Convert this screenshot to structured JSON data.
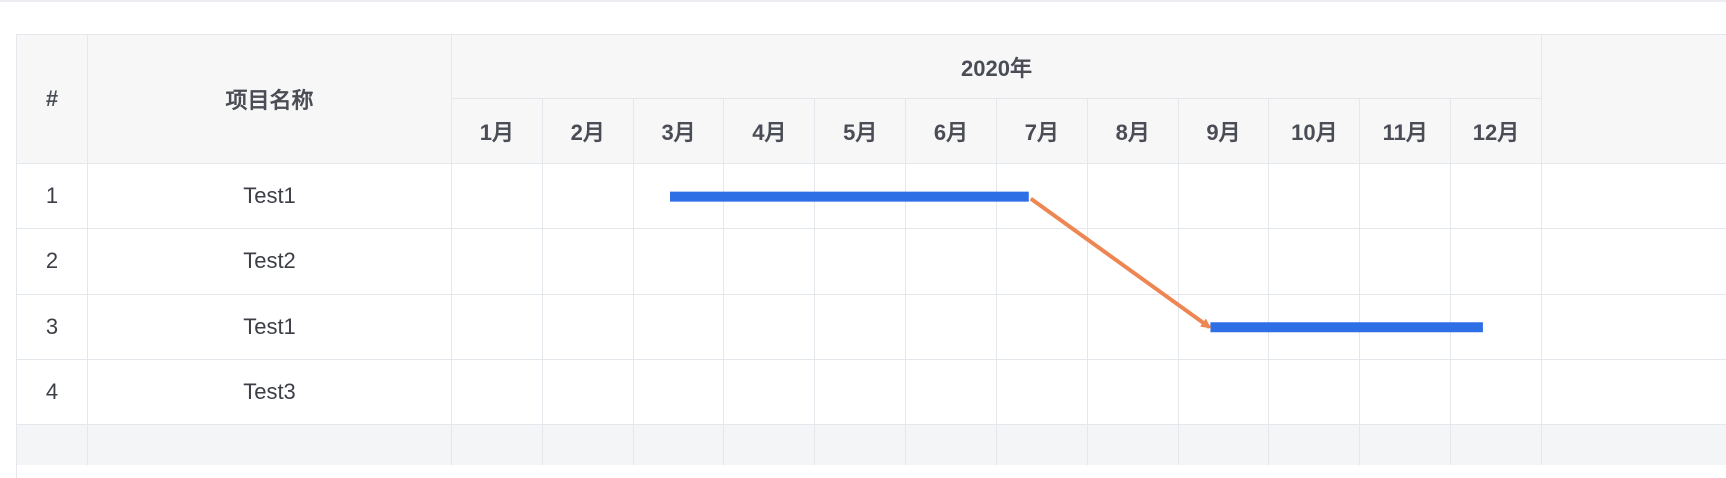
{
  "header": {
    "index_label": "#",
    "name_label": "项目名称",
    "year_label": "2020年",
    "months": [
      "1月",
      "2月",
      "3月",
      "4月",
      "5月",
      "6月",
      "7月",
      "8月",
      "9月",
      "10月",
      "11月",
      "12月"
    ]
  },
  "rows": [
    {
      "index": "1",
      "name": "Test1"
    },
    {
      "index": "2",
      "name": "Test2"
    },
    {
      "index": "3",
      "name": "Test1"
    },
    {
      "index": "4",
      "name": "Test3"
    }
  ],
  "tasks": [
    {
      "row": 1,
      "start_month": 3.4,
      "end_month": 7.35
    },
    {
      "row": 3,
      "start_month": 9.35,
      "end_month": 12.35
    }
  ],
  "dependencies": [
    {
      "from_task": 0,
      "to_task": 1
    }
  ],
  "colors": {
    "bar": "#2f6fe6",
    "arrow": "#ee8653",
    "header_bg": "#f7f7f8",
    "grid": "#e4e7ec"
  }
}
